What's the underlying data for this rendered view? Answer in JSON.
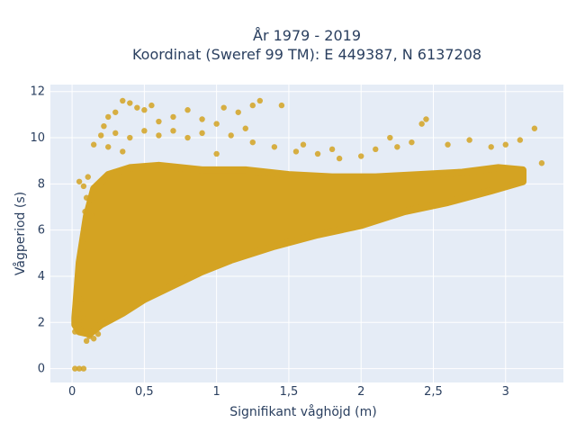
{
  "chart_data": {
    "type": "scatter",
    "title_line1": "År 1979 - 2019",
    "title_line2": "Koordinat (Sweref 99 TM): E 449387, N 6137208",
    "xlabel": "Signifikant våghöjd (m)",
    "ylabel": "Vågperiod (s)",
    "xlim": [
      -0.15,
      3.4
    ],
    "ylim": [
      -0.6,
      12.3
    ],
    "x_ticks": [
      0,
      0.5,
      1,
      1.5,
      2,
      2.5,
      3
    ],
    "x_tick_labels": [
      "0",
      "0,5",
      "1",
      "1,5",
      "2",
      "2,5",
      "3"
    ],
    "y_ticks": [
      0,
      2,
      4,
      6,
      8,
      10,
      12
    ],
    "y_tick_labels": [
      "0",
      "2",
      "4",
      "6",
      "8",
      "10",
      "12"
    ],
    "grid": true,
    "colors": {
      "marker": "#d4a322",
      "plot_bg": "#e5ecf6",
      "grid": "#ffffff",
      "text": "#2a3f5f"
    },
    "series": [
      {
        "values_note": "",
        "points": [
          [
            0.02,
            0
          ],
          [
            0.05,
            0
          ],
          [
            0.08,
            0
          ],
          [
            0.02,
            1.6
          ],
          [
            0.05,
            1.9
          ],
          [
            0.1,
            1.2
          ],
          [
            0.12,
            1.4
          ],
          [
            0.15,
            1.3
          ],
          [
            0.18,
            1.5
          ],
          [
            0.04,
            2.4
          ],
          [
            0.06,
            3.0
          ],
          [
            0.03,
            2.8
          ],
          [
            0.08,
            2.2
          ],
          [
            0.07,
            5.5
          ],
          [
            0.09,
            6.8
          ],
          [
            0.1,
            7.4
          ],
          [
            0.05,
            8.1
          ],
          [
            0.08,
            7.9
          ],
          [
            0.12,
            7.3
          ],
          [
            0.14,
            6.6
          ],
          [
            0.11,
            8.3
          ],
          [
            0.15,
            9.7
          ],
          [
            0.2,
            10.1
          ],
          [
            0.22,
            10.5
          ],
          [
            0.25,
            10.9
          ],
          [
            0.3,
            11.1
          ],
          [
            0.35,
            11.6
          ],
          [
            0.4,
            11.5
          ],
          [
            0.45,
            11.3
          ],
          [
            0.5,
            11.2
          ],
          [
            0.55,
            11.4
          ],
          [
            0.6,
            10.7
          ],
          [
            0.7,
            10.9
          ],
          [
            0.8,
            11.2
          ],
          [
            0.9,
            10.8
          ],
          [
            1.0,
            10.6
          ],
          [
            1.05,
            11.3
          ],
          [
            1.15,
            11.1
          ],
          [
            1.2,
            10.4
          ],
          [
            1.25,
            11.4
          ],
          [
            1.3,
            11.6
          ],
          [
            1.45,
            11.4
          ],
          [
            0.3,
            10.2
          ],
          [
            0.4,
            10.0
          ],
          [
            0.5,
            10.3
          ],
          [
            0.6,
            10.1
          ],
          [
            0.7,
            10.3
          ],
          [
            0.8,
            10.0
          ],
          [
            0.9,
            10.2
          ],
          [
            1.1,
            10.1
          ],
          [
            1.25,
            9.8
          ],
          [
            1.4,
            9.6
          ],
          [
            1.55,
            9.4
          ],
          [
            1.7,
            9.3
          ],
          [
            1.85,
            9.1
          ],
          [
            2.0,
            9.2
          ],
          [
            2.1,
            9.5
          ],
          [
            2.25,
            9.6
          ],
          [
            2.35,
            9.8
          ],
          [
            2.42,
            10.6
          ],
          [
            2.45,
            10.8
          ],
          [
            2.6,
            9.7
          ],
          [
            2.75,
            9.9
          ],
          [
            2.9,
            9.6
          ],
          [
            3.0,
            9.7
          ],
          [
            3.1,
            9.9
          ],
          [
            3.2,
            10.4
          ],
          [
            3.25,
            8.9
          ],
          [
            1.6,
            9.7
          ],
          [
            1.8,
            9.5
          ],
          [
            2.2,
            10.0
          ],
          [
            1.0,
            9.3
          ],
          [
            0.25,
            9.6
          ],
          [
            0.35,
            9.4
          ]
        ]
      }
    ]
  }
}
